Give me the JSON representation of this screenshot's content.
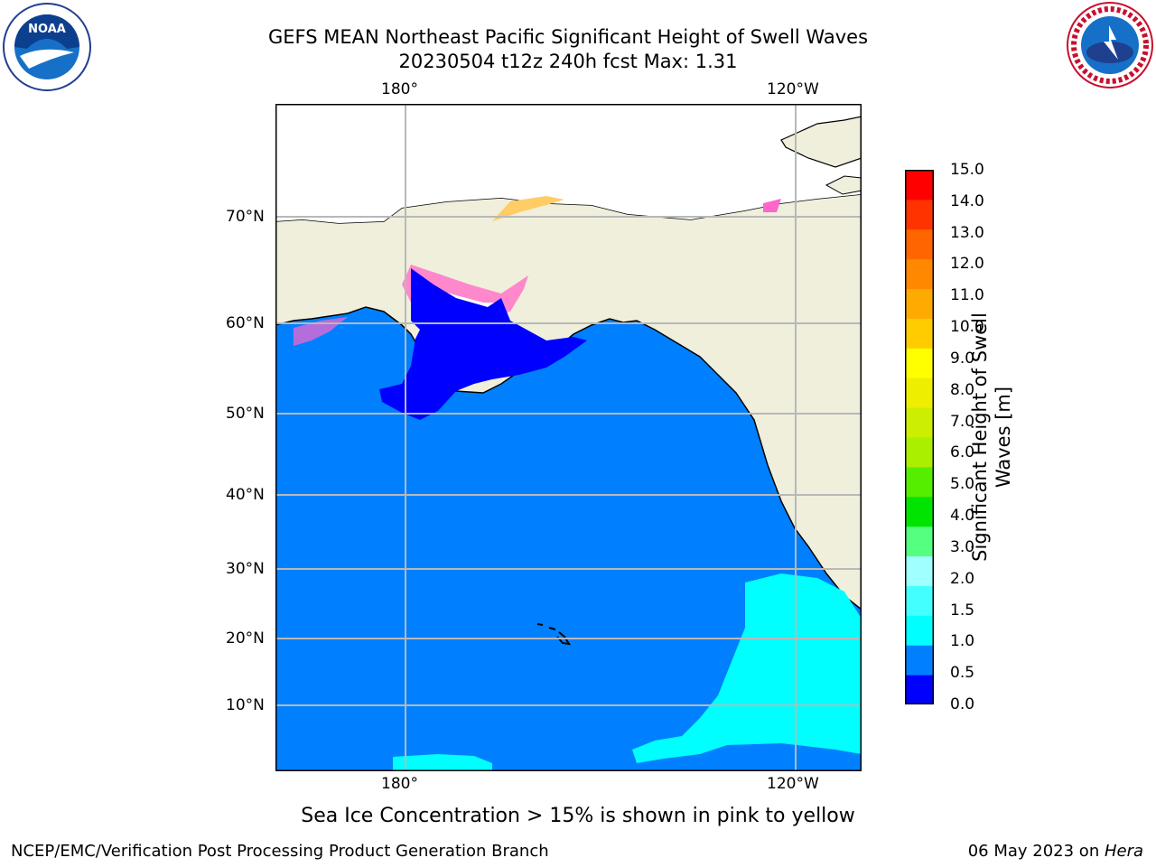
{
  "title_line1": "GEFS MEAN Northeast Pacific Significant Height of Swell Waves",
  "title_line2": "20230504 t12z 240h fcst   Max: 1.31",
  "logos": {
    "left": "NOAA",
    "right": "NATIONAL WEATHER SERVICE"
  },
  "map": {
    "lon_labels": [
      "180°",
      "120°W"
    ],
    "lat_labels": [
      "70°N",
      "60°N",
      "50°N",
      "40°N",
      "30°N",
      "20°N",
      "10°N"
    ],
    "ocean_color": "#0080ff",
    "land_color": "#efefdc",
    "low_color": "#0000ff",
    "high_color": "#00ffff"
  },
  "colorbar": {
    "label": "Significant Height of Swell Waves [m]",
    "ticks": [
      "15.0",
      "14.0",
      "13.0",
      "12.0",
      "11.0",
      "10.0",
      "9.0",
      "8.0",
      "7.0",
      "6.0",
      "5.0",
      "4.0",
      "3.0",
      "2.0",
      "1.5",
      "1.0",
      "0.5",
      "0.0"
    ],
    "colors_bottom_to_top": [
      "#0000ff",
      "#0080ff",
      "#00ffff",
      "#44ffff",
      "#a0ffff",
      "#55ff7f",
      "#00e400",
      "#55ee00",
      "#aaee00",
      "#ccee00",
      "#eeee00",
      "#ffff00",
      "#ffcc00",
      "#ffaa00",
      "#ff8800",
      "#ff6600",
      "#ff3300",
      "#ff0000"
    ]
  },
  "caption": "Sea Ice Concentration > 15% is shown in pink to yellow",
  "footer_left": "NCEP/EMC/Verification Post Processing Product Generation Branch",
  "footer_right_date": "06 May 2023 on ",
  "footer_right_host": "Hera"
}
